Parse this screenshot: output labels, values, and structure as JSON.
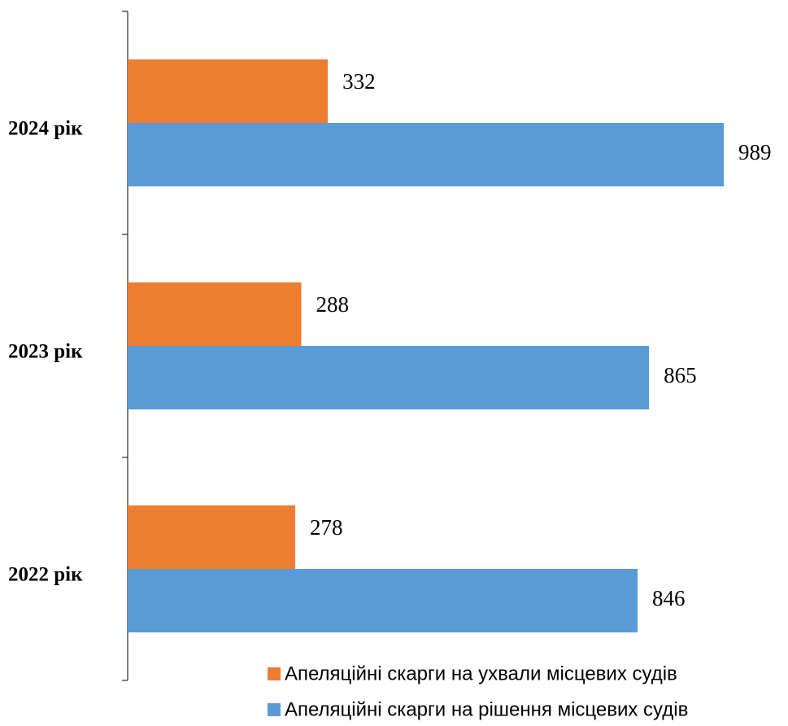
{
  "chart_data": {
    "type": "hbar",
    "categories": [
      "2022 рік",
      "2023 рік",
      "2024 рік"
    ],
    "series": [
      {
        "name": "Апеляційні скарги на ухвали місцевих судів",
        "color": "#ed7d31",
        "values": [
          278,
          288,
          332
        ]
      },
      {
        "name": "Апеляційні скарги на рішення місцевих судів",
        "color": "#5b9bd5",
        "values": [
          846,
          865,
          989
        ]
      }
    ],
    "legend": "bottom-right"
  }
}
